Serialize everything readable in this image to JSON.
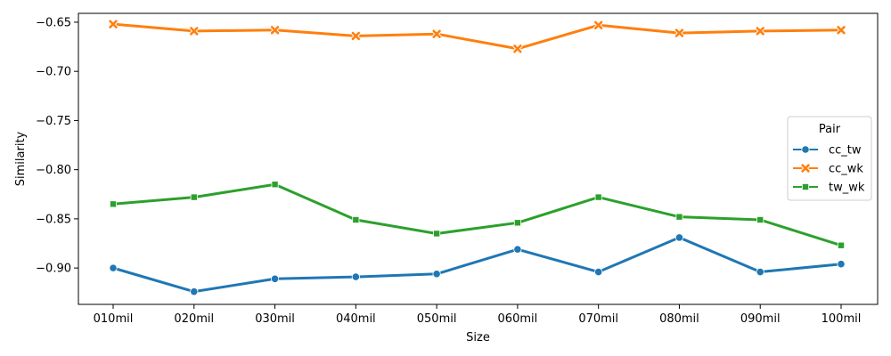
{
  "chart_data": {
    "type": "line",
    "title": "",
    "xlabel": "Size",
    "ylabel": "Similarity",
    "categories": [
      "010mil",
      "020mil",
      "030mil",
      "040mil",
      "050mil",
      "060mil",
      "070mil",
      "080mil",
      "090mil",
      "100mil"
    ],
    "ylim": [
      -0.937,
      -0.641
    ],
    "yticks": [
      -0.9,
      -0.85,
      -0.8,
      -0.75,
      -0.7,
      -0.65
    ],
    "ytick_labels": [
      "−0.90",
      "−0.85",
      "−0.80",
      "−0.75",
      "−0.70",
      "−0.65"
    ],
    "grid": false,
    "legend": {
      "title": "Pair",
      "placement": "center-right"
    },
    "series": [
      {
        "name": "cc_tw",
        "color": "#1f77b4",
        "marker": "circle",
        "values": [
          -0.9,
          -0.924,
          -0.911,
          -0.909,
          -0.906,
          -0.881,
          -0.904,
          -0.869,
          -0.904,
          -0.896
        ]
      },
      {
        "name": "cc_wk",
        "color": "#ff7f0e",
        "marker": "x",
        "values": [
          -0.652,
          -0.659,
          -0.658,
          -0.664,
          -0.662,
          -0.677,
          -0.653,
          -0.661,
          -0.659,
          -0.658
        ]
      },
      {
        "name": "tw_wk",
        "color": "#2ca02c",
        "marker": "square",
        "values": [
          -0.835,
          -0.828,
          -0.815,
          -0.851,
          -0.865,
          -0.854,
          -0.828,
          -0.848,
          -0.851,
          -0.877
        ]
      }
    ]
  }
}
